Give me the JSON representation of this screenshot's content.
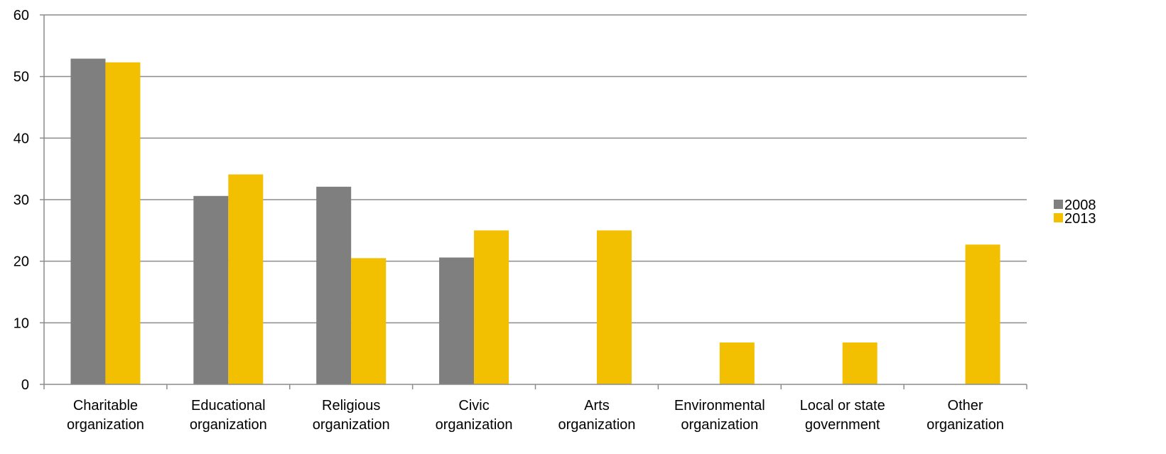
{
  "chart_data": {
    "type": "bar",
    "title": "",
    "xlabel": "",
    "ylabel": "",
    "ylim": [
      0,
      60
    ],
    "yticks": [
      0,
      10,
      20,
      30,
      40,
      50,
      60
    ],
    "grid": true,
    "legend_position": "right",
    "categories": [
      [
        "Charitable",
        "organization"
      ],
      [
        "Educational",
        "organization"
      ],
      [
        "Religious",
        "organization"
      ],
      [
        "Civic",
        "organization"
      ],
      [
        "Arts",
        "organization"
      ],
      [
        "Environmental",
        "organization"
      ],
      [
        "Local or state",
        "government"
      ],
      [
        "Other",
        "organization"
      ]
    ],
    "series": [
      {
        "name": "2008",
        "color": "#7f7f7f",
        "values": [
          52.9,
          30.6,
          32.1,
          20.6,
          0,
          0,
          0,
          0
        ]
      },
      {
        "name": "2013",
        "color": "#f2c000",
        "values": [
          52.3,
          34.1,
          20.5,
          25.0,
          25.0,
          6.8,
          6.8,
          22.7
        ]
      }
    ]
  }
}
